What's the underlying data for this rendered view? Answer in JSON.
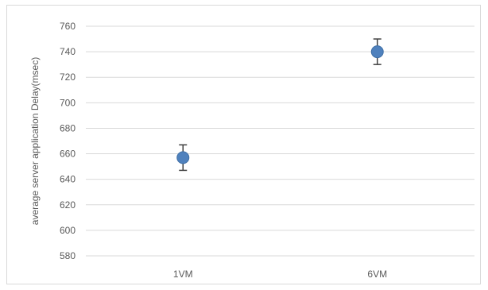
{
  "chart_data": {
    "type": "scatter",
    "title": "",
    "xlabel": "",
    "ylabel": "average server application Delay(msec)",
    "categories": [
      "1VM",
      "6VM"
    ],
    "series": [
      {
        "values": [
          657,
          740
        ],
        "error": [
          10,
          10
        ],
        "color": "#4f81bd"
      }
    ],
    "ylim": [
      580,
      760
    ],
    "yticks": [
      580,
      600,
      620,
      640,
      660,
      680,
      700,
      720,
      740,
      760
    ],
    "grid": true,
    "legend": "none",
    "colors": {
      "gridline": "#d9d9d9",
      "errorbar": "#404040",
      "text": "#595959"
    }
  }
}
